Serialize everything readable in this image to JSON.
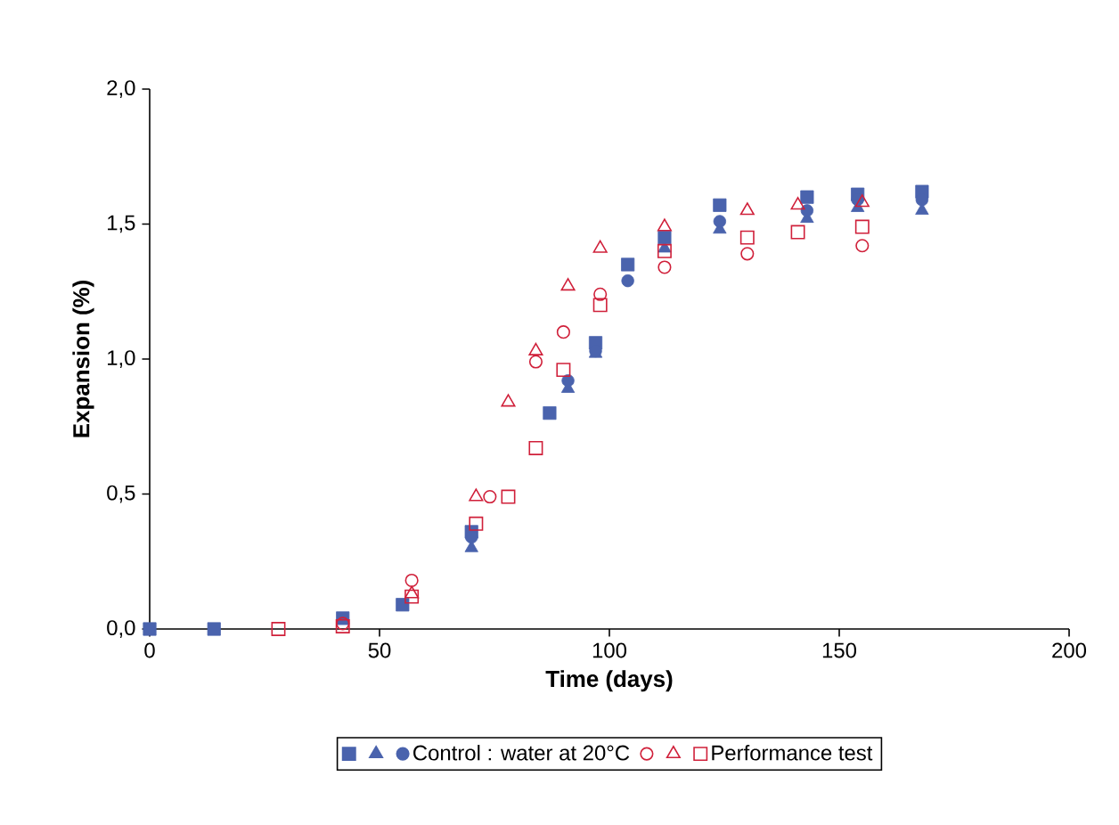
{
  "chart_data": {
    "type": "scatter",
    "xlabel": "Time (days)",
    "ylabel": "Expansion (%)",
    "xlim": [
      0,
      200
    ],
    "ylim": [
      0,
      2
    ],
    "xticks": [
      0,
      50,
      100,
      150,
      200
    ],
    "yticks": [
      {
        "value": 0,
        "label": "0,0"
      },
      {
        "value": 0.5,
        "label": "0,5"
      },
      {
        "value": 1,
        "label": "1,0"
      },
      {
        "value": 1.5,
        "label": "1,5"
      },
      {
        "value": 2,
        "label": "2,0"
      }
    ],
    "legend": "bottom",
    "grid": false,
    "series": [
      {
        "color": "#4a63ad",
        "marker": "square",
        "x": [
          0,
          14,
          42,
          55,
          70,
          87,
          97,
          104,
          112,
          124,
          143,
          154,
          168
        ],
        "values": [
          0,
          0,
          0.04,
          0.09,
          0.36,
          0.8,
          1.06,
          1.35,
          1.45,
          1.57,
          1.6,
          1.61,
          1.62
        ]
      },
      {
        "color": "#4a63ad",
        "marker": "triangle",
        "x": [
          70,
          91,
          97,
          112,
          124,
          143,
          154,
          168
        ],
        "values": [
          0.3,
          0.89,
          1.02,
          1.41,
          1.48,
          1.52,
          1.56,
          1.55
        ]
      },
      {
        "name": "Control : water at 20°C",
        "color": "#4a63ad",
        "marker": "circle",
        "x": [
          70,
          91,
          97,
          104,
          124,
          143,
          154,
          168
        ],
        "values": [
          0.34,
          0.92,
          1.03,
          1.29,
          1.51,
          1.55,
          1.59,
          1.59
        ]
      },
      {
        "color": "#d0203a",
        "marker": "circle",
        "x": [
          42,
          57,
          74,
          84,
          90,
          98,
          112,
          130,
          155
        ],
        "values": [
          0.02,
          0.18,
          0.49,
          0.99,
          1.1,
          1.24,
          1.34,
          1.39,
          1.42
        ]
      },
      {
        "color": "#d0203a",
        "marker": "triangle",
        "x": [
          57,
          71,
          78,
          84,
          91,
          98,
          112,
          130,
          141,
          155
        ],
        "values": [
          0.13,
          0.49,
          0.84,
          1.03,
          1.27,
          1.41,
          1.49,
          1.55,
          1.57,
          1.58
        ]
      },
      {
        "name": "Performance test",
        "color": "#d0203a",
        "marker": "square",
        "x": [
          28,
          42,
          57,
          71,
          78,
          84,
          90,
          98,
          112,
          130,
          141,
          155
        ],
        "values": [
          0,
          0.01,
          0.12,
          0.39,
          0.49,
          0.67,
          0.96,
          1.2,
          1.4,
          1.45,
          1.47,
          1.49
        ]
      }
    ]
  }
}
